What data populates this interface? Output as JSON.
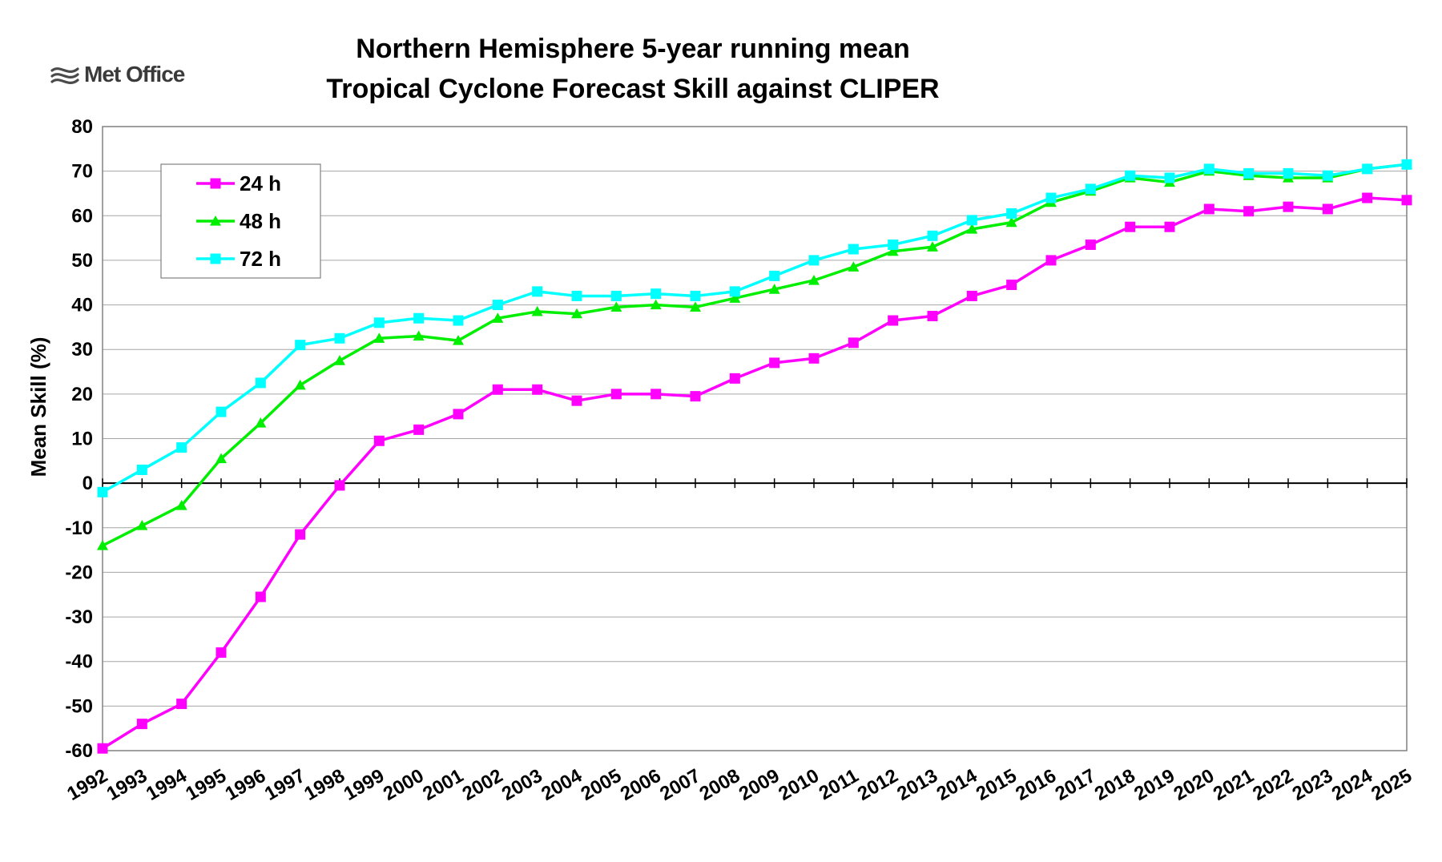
{
  "logo": {
    "text": "Met Office",
    "icon": "met-office-logo-icon"
  },
  "chart_data": {
    "type": "line",
    "title": "Northern Hemisphere 5-year running mean",
    "subtitle": "Tropical Cyclone Forecast Skill against CLIPER",
    "xlabel": "",
    "ylabel": "Mean Skill (%)",
    "ylim": [
      -60,
      80
    ],
    "yticks": [
      80,
      70,
      60,
      50,
      40,
      30,
      20,
      10,
      0,
      -10,
      -20,
      -30,
      -40,
      -50,
      -60
    ],
    "grid": true,
    "legend_position": "top-left",
    "categories": [
      "1992",
      "1993",
      "1994",
      "1995",
      "1996",
      "1997",
      "1998",
      "1999",
      "2000",
      "2001",
      "2002",
      "2003",
      "2004",
      "2005",
      "2006",
      "2007",
      "2008",
      "2009",
      "2010",
      "2011",
      "2012",
      "2013",
      "2014",
      "2015",
      "2016",
      "2017",
      "2018",
      "2019",
      "2020",
      "2021",
      "2022",
      "2023",
      "2024",
      "2025"
    ],
    "series": [
      {
        "name": "24 h",
        "color": "#ff00ff",
        "marker": "square",
        "values": [
          -59.5,
          -54,
          -49.5,
          -38,
          -25.5,
          -11.5,
          -0.5,
          9.5,
          12,
          15.5,
          21,
          21,
          18.5,
          20,
          20,
          19.5,
          23.5,
          27,
          28,
          31.5,
          36.5,
          37.5,
          42,
          44.5,
          50,
          53.5,
          57.5,
          57.5,
          61.5,
          61,
          62,
          61.5,
          64,
          63.5
        ]
      },
      {
        "name": "48 h",
        "color": "#00ee00",
        "marker": "triangle",
        "values": [
          -14,
          -9.5,
          -5,
          5.5,
          13.5,
          22,
          27.5,
          32.5,
          33,
          32,
          37,
          38.5,
          38,
          39.5,
          40,
          39.5,
          41.5,
          43.5,
          45.5,
          48.5,
          52,
          53,
          57,
          58.5,
          63,
          65.5,
          68.5,
          67.5,
          70,
          69,
          68.5,
          68.5,
          70.5,
          71.5
        ]
      },
      {
        "name": "72 h",
        "color": "#00ffff",
        "marker": "square",
        "values": [
          -2,
          3,
          8,
          16,
          22.5,
          31,
          32.5,
          36,
          37,
          36.5,
          40,
          43,
          42,
          42,
          42.5,
          42,
          43,
          46.5,
          50,
          52.5,
          53.5,
          55.5,
          59,
          60.5,
          64,
          66,
          69,
          68.5,
          70.5,
          69.5,
          69.5,
          69,
          70.5,
          71.5
        ]
      }
    ]
  }
}
